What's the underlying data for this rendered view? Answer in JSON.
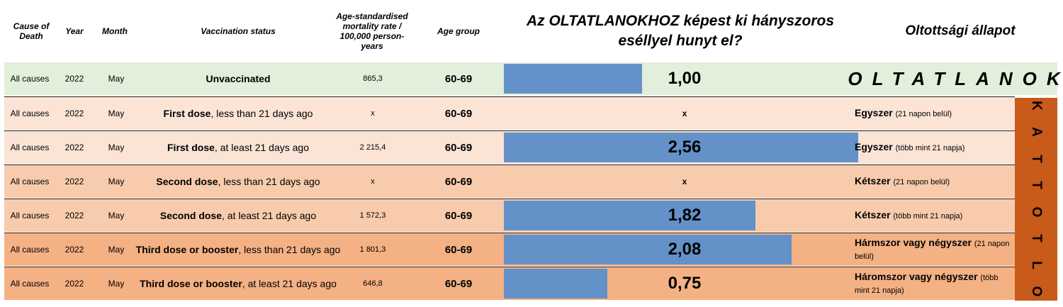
{
  "header": {
    "cause": "Cause of Death",
    "year": "Year",
    "month": "Month",
    "vaccination": "Vaccination status",
    "rate": "Age-standardised mortality rate / 100,000 person-years",
    "age": "Age group",
    "odds": "Az OLTATLANOKHOZ képest ki hányszoros eséllyel hunyt el?",
    "status": "Oltottsági állapot"
  },
  "side_labels": {
    "unvaccinated": "OLTATLANOK",
    "vaccinated": "OLTOTTAK"
  },
  "colors": {
    "row_unvacc": "#e2efda",
    "row_dose1": "#fbe3d6",
    "row_dose2": "#f8cbad",
    "row_dose3": "#f4b183",
    "bar": "#6391c8",
    "vax_band": "#c85a1a"
  },
  "rows": [
    {
      "cause": "All causes",
      "year": "2022",
      "month": "May",
      "vacc_bold": "Unvaccinated",
      "vacc_rest": "",
      "rate": "865,3",
      "age": "60-69",
      "ratio": "1,00",
      "ratio_value": 1.0,
      "status_bold": "",
      "status_rest": ""
    },
    {
      "cause": "All causes",
      "year": "2022",
      "month": "May",
      "vacc_bold": "First dose",
      "vacc_rest": ", less than 21 days ago",
      "rate": "x",
      "age": "60-69",
      "ratio": "x",
      "ratio_value": null,
      "status_bold": "Egyszer",
      "status_rest": "(21 napon belül)"
    },
    {
      "cause": "All causes",
      "year": "2022",
      "month": "May",
      "vacc_bold": "First dose",
      "vacc_rest": ", at least 21 days ago",
      "rate": "2 215,4",
      "age": "60-69",
      "ratio": "2,56",
      "ratio_value": 2.56,
      "status_bold": "Egyszer",
      "status_rest": "(több mint 21 napja)"
    },
    {
      "cause": "All causes",
      "year": "2022",
      "month": "May",
      "vacc_bold": "Second dose",
      "vacc_rest": ", less than 21 days ago",
      "rate": "x",
      "age": "60-69",
      "ratio": "x",
      "ratio_value": null,
      "status_bold": "Kétszer",
      "status_rest": "(21 napon belül)"
    },
    {
      "cause": "All causes",
      "year": "2022",
      "month": "May",
      "vacc_bold": "Second dose",
      "vacc_rest": ",  at least 21 days ago",
      "rate": "1 572,3",
      "age": "60-69",
      "ratio": "1,82",
      "ratio_value": 1.82,
      "status_bold": "Kétszer",
      "status_rest": "(több mint 21 napja)"
    },
    {
      "cause": "All causes",
      "year": "2022",
      "month": "May",
      "vacc_bold": "Third dose or booster",
      "vacc_rest": ", less than 21 days ago",
      "rate": "1 801,3",
      "age": "60-69",
      "ratio": "2,08",
      "ratio_value": 2.08,
      "status_bold": "Hármszor vagy négyszer",
      "status_rest": "(21 napon belül)"
    },
    {
      "cause": "All causes",
      "year": "2022",
      "month": "May",
      "vacc_bold": "Third dose or booster",
      "vacc_rest": ", at least 21 days ago",
      "rate": "646,8",
      "age": "60-69",
      "ratio": "0,75",
      "ratio_value": 0.75,
      "status_bold": "Háromszor vagy négyszer",
      "status_rest": "(több mint 21 napja)"
    }
  ]
}
